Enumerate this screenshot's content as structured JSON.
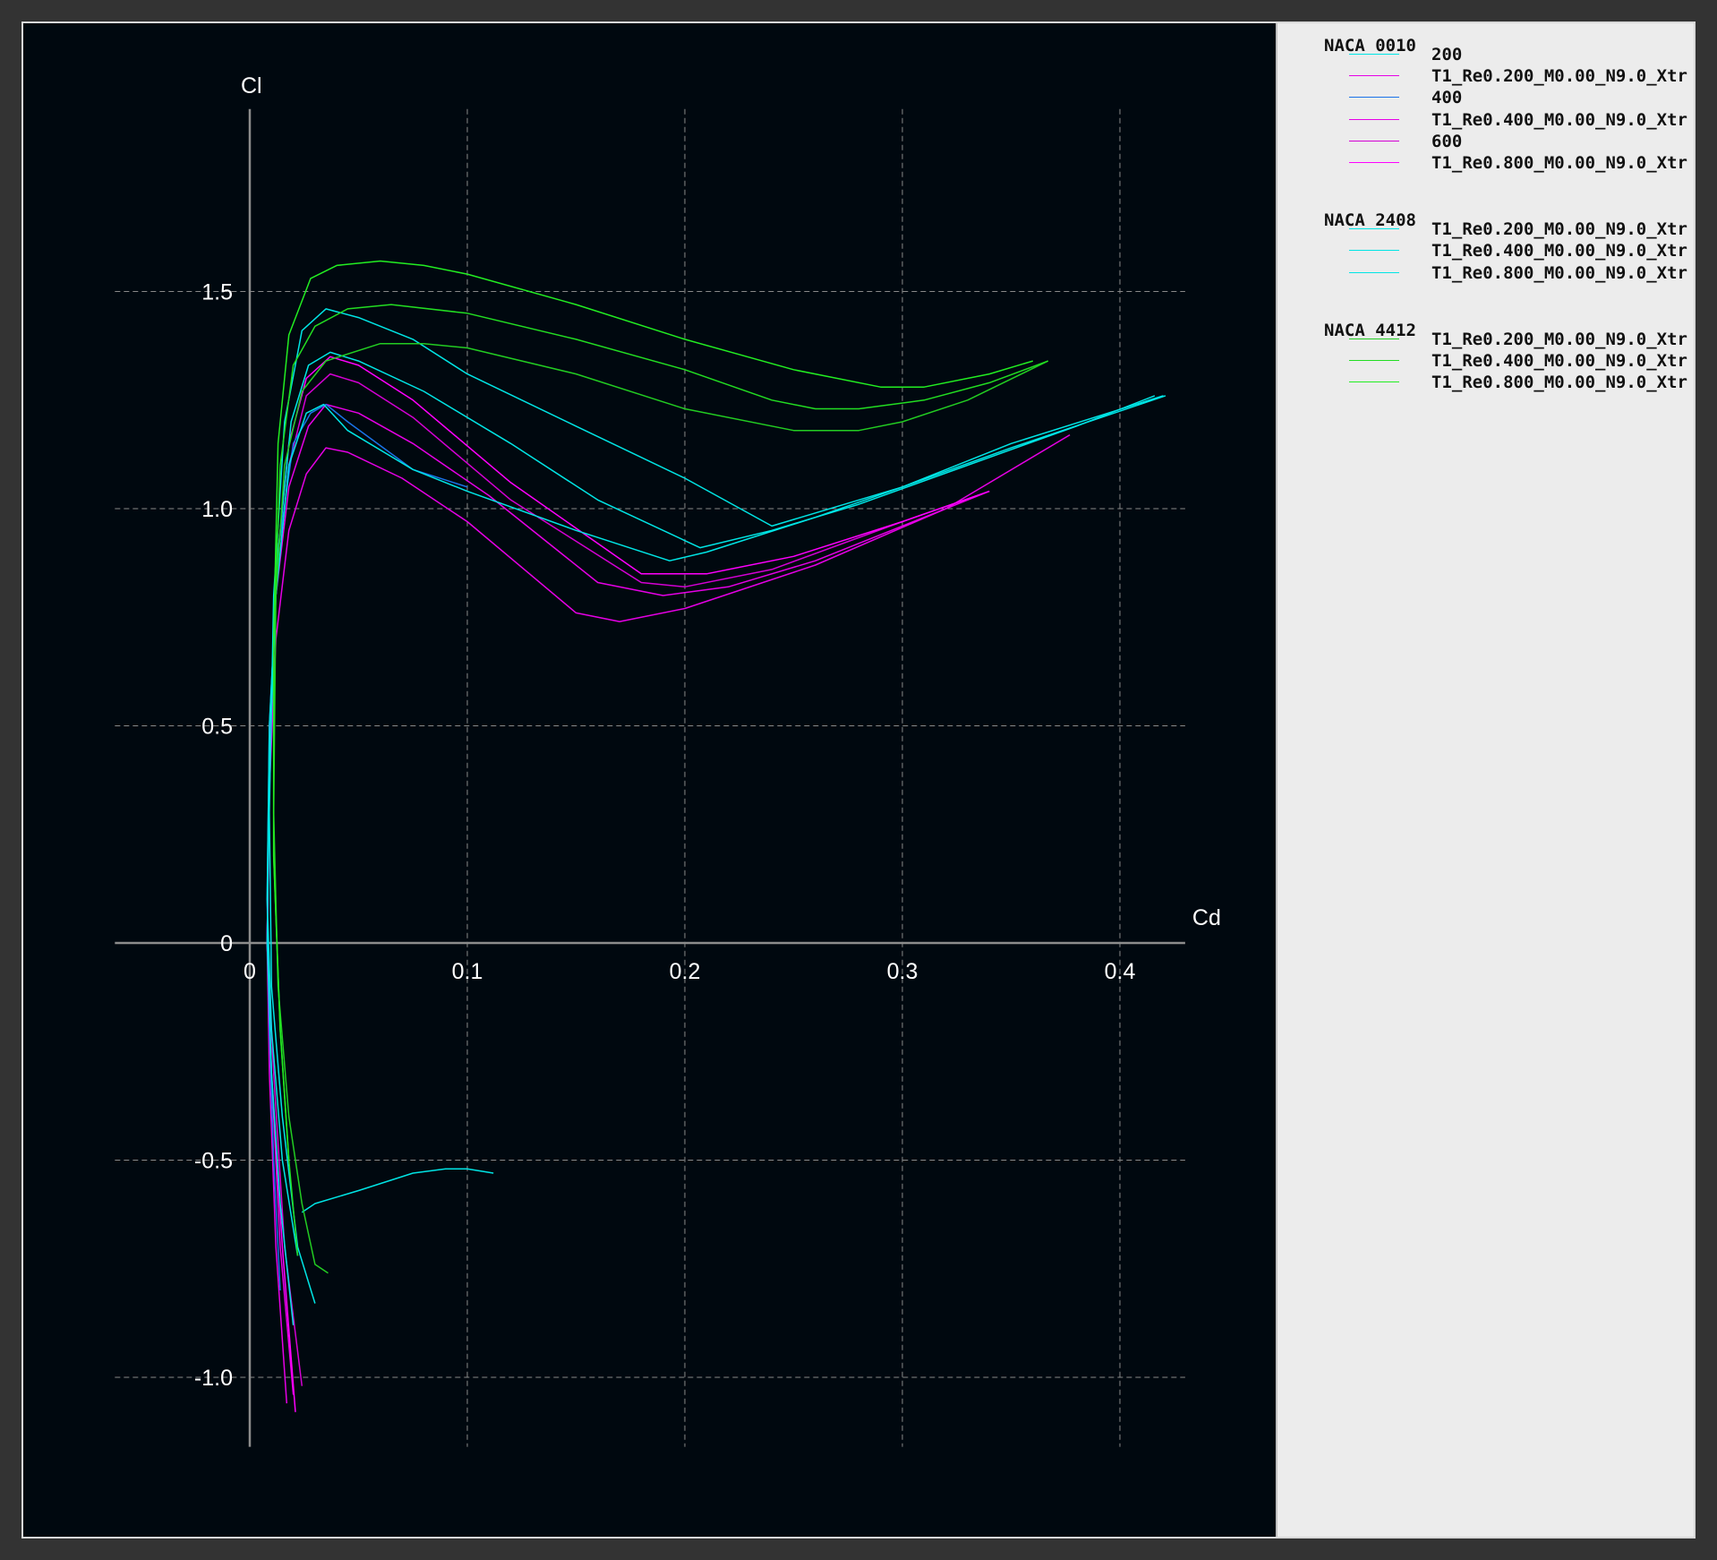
{
  "chart_data": {
    "type": "line",
    "xlabel": "Cd",
    "ylabel": "Cl",
    "xlim": [
      -0.062,
      0.43
    ],
    "ylim": [
      -1.16,
      1.92
    ],
    "grid": true,
    "legend_position": "right",
    "x_ticks": [
      {
        "value": 0,
        "label": "0"
      },
      {
        "value": 0.1,
        "label": "0.1"
      },
      {
        "value": 0.2,
        "label": "0.2"
      },
      {
        "value": 0.3,
        "label": "0.3"
      },
      {
        "value": 0.4,
        "label": "0.4"
      }
    ],
    "y_ticks": [
      {
        "value": -1.0,
        "label": "-1.0"
      },
      {
        "value": -0.5,
        "label": "-0.5"
      },
      {
        "value": 0,
        "label": "0"
      },
      {
        "value": 0.5,
        "label": "0.5"
      },
      {
        "value": 1.0,
        "label": "1.0"
      },
      {
        "value": 1.5,
        "label": "1.5"
      }
    ],
    "legend_groups": [
      {
        "title": "NACA 0010",
        "entries": [
          {
            "label": "200",
            "color": "#00e5e5"
          },
          {
            "label": "T1_Re0.200_M0.00_N9.0_Xtr",
            "color": "#e600e6"
          },
          {
            "label": "400",
            "color": "#1a73e8"
          },
          {
            "label": "T1_Re0.400_M0.00_N9.0_Xtr",
            "color": "#e600e6"
          },
          {
            "label": "600",
            "color": "#d400d4"
          },
          {
            "label": "T1_Re0.800_M0.00_N9.0_Xtr",
            "color": "#ff00ff"
          }
        ]
      },
      {
        "title": "NACA 2408",
        "entries": [
          {
            "label": "T1_Re0.200_M0.00_N9.0_Xtr",
            "color": "#00e5e5"
          },
          {
            "label": "T1_Re0.400_M0.00_N9.0_Xtr",
            "color": "#00e5e5"
          },
          {
            "label": "T1_Re0.800_M0.00_N9.0_Xtr",
            "color": "#00e5e5"
          }
        ]
      },
      {
        "title": "NACA 4412",
        "entries": [
          {
            "label": "T1_Re0.200_M0.00_N9.0_Xtr",
            "color": "#22cc22"
          },
          {
            "label": "T1_Re0.400_M0.00_N9.0_Xtr",
            "color": "#22dd22"
          },
          {
            "label": "T1_Re0.800_M0.00_N9.0_Xtr",
            "color": "#22ee22"
          }
        ]
      }
    ],
    "series": [
      {
        "color": "#e600e6",
        "points": [
          [
            0.017,
            -1.06
          ],
          [
            0.012,
            -0.7
          ],
          [
            0.009,
            -0.3
          ],
          [
            0.008,
            0
          ],
          [
            0.009,
            0.35
          ],
          [
            0.012,
            0.7
          ],
          [
            0.018,
            0.95
          ],
          [
            0.026,
            1.08
          ],
          [
            0.035,
            1.14
          ],
          [
            0.045,
            1.13
          ],
          [
            0.07,
            1.07
          ],
          [
            0.1,
            0.97
          ],
          [
            0.15,
            0.76
          ],
          [
            0.17,
            0.74
          ],
          [
            0.2,
            0.77
          ],
          [
            0.26,
            0.87
          ],
          [
            0.32,
            1.0
          ],
          [
            0.377,
            1.17
          ]
        ]
      },
      {
        "color": "#e600e6",
        "points": [
          [
            0.02,
            -1.04
          ],
          [
            0.014,
            -0.7
          ],
          [
            0.01,
            -0.3
          ],
          [
            0.008,
            0
          ],
          [
            0.009,
            0.4
          ],
          [
            0.012,
            0.8
          ],
          [
            0.018,
            1.05
          ],
          [
            0.027,
            1.19
          ],
          [
            0.035,
            1.24
          ],
          [
            0.05,
            1.22
          ],
          [
            0.075,
            1.15
          ],
          [
            0.11,
            1.03
          ],
          [
            0.16,
            0.83
          ],
          [
            0.19,
            0.8
          ],
          [
            0.22,
            0.82
          ],
          [
            0.26,
            0.88
          ],
          [
            0.32,
            1.0
          ],
          [
            0.34,
            1.04
          ]
        ]
      },
      {
        "color": "#d400d4",
        "points": [
          [
            0.024,
            -1.02
          ],
          [
            0.016,
            -0.7
          ],
          [
            0.011,
            -0.3
          ],
          [
            0.008,
            0
          ],
          [
            0.009,
            0.4
          ],
          [
            0.012,
            0.8
          ],
          [
            0.018,
            1.1
          ],
          [
            0.026,
            1.26
          ],
          [
            0.037,
            1.31
          ],
          [
            0.05,
            1.29
          ],
          [
            0.075,
            1.21
          ],
          [
            0.12,
            1.02
          ],
          [
            0.18,
            0.83
          ],
          [
            0.2,
            0.82
          ],
          [
            0.24,
            0.86
          ],
          [
            0.3,
            0.97
          ],
          [
            0.34,
            1.04
          ]
        ]
      },
      {
        "color": "#ff00ff",
        "points": [
          [
            0.021,
            -1.08
          ],
          [
            0.015,
            -0.7
          ],
          [
            0.01,
            -0.3
          ],
          [
            0.008,
            0
          ],
          [
            0.009,
            0.45
          ],
          [
            0.012,
            0.85
          ],
          [
            0.018,
            1.15
          ],
          [
            0.026,
            1.3
          ],
          [
            0.037,
            1.35
          ],
          [
            0.05,
            1.33
          ],
          [
            0.075,
            1.25
          ],
          [
            0.12,
            1.06
          ],
          [
            0.18,
            0.85
          ],
          [
            0.21,
            0.85
          ],
          [
            0.25,
            0.89
          ],
          [
            0.3,
            0.97
          ],
          [
            0.34,
            1.04
          ]
        ]
      },
      {
        "color": "#1a73e8",
        "points": [
          [
            0.014,
            -0.8
          ],
          [
            0.011,
            -0.5
          ],
          [
            0.009,
            -0.2
          ],
          [
            0.008,
            0.1
          ],
          [
            0.009,
            0.5
          ],
          [
            0.013,
            0.9
          ],
          [
            0.02,
            1.15
          ],
          [
            0.028,
            1.22
          ],
          [
            0.035,
            1.24
          ],
          [
            0.045,
            1.2
          ],
          [
            0.075,
            1.09
          ],
          [
            0.1,
            1.05
          ]
        ]
      },
      {
        "color": "#00e5e5",
        "points": [
          [
            0.02,
            -0.88
          ],
          [
            0.014,
            -0.6
          ],
          [
            0.01,
            -0.3
          ],
          [
            0.008,
            0
          ],
          [
            0.009,
            0.4
          ],
          [
            0.012,
            0.8
          ],
          [
            0.018,
            1.1
          ],
          [
            0.026,
            1.22
          ],
          [
            0.034,
            1.24
          ],
          [
            0.045,
            1.18
          ],
          [
            0.075,
            1.09
          ],
          [
            0.1,
            1.04
          ],
          [
            0.15,
            0.95
          ],
          [
            0.193,
            0.88
          ],
          [
            0.21,
            0.9
          ],
          [
            0.26,
            0.98
          ],
          [
            0.3,
            1.05
          ],
          [
            0.35,
            1.15
          ],
          [
            0.42,
            1.26
          ]
        ]
      },
      {
        "color": "#00e5e5",
        "points": [
          [
            0.022,
            -0.72
          ],
          [
            0.015,
            -0.5
          ],
          [
            0.01,
            -0.2
          ],
          [
            0.008,
            0.1
          ],
          [
            0.009,
            0.5
          ],
          [
            0.013,
            0.9
          ],
          [
            0.019,
            1.2
          ],
          [
            0.027,
            1.33
          ],
          [
            0.037,
            1.36
          ],
          [
            0.05,
            1.34
          ],
          [
            0.08,
            1.27
          ],
          [
            0.12,
            1.15
          ],
          [
            0.16,
            1.02
          ],
          [
            0.207,
            0.91
          ],
          [
            0.24,
            0.95
          ],
          [
            0.28,
            1.01
          ],
          [
            0.33,
            1.1
          ],
          [
            0.38,
            1.19
          ],
          [
            0.416,
            1.26
          ]
        ]
      },
      {
        "color": "#00e5e5",
        "points": [
          [
            0.03,
            -0.83
          ],
          [
            0.022,
            -0.7
          ],
          [
            0.015,
            -0.4
          ],
          [
            0.01,
            -0.1
          ],
          [
            0.009,
            0.3
          ],
          [
            0.011,
            0.8
          ],
          [
            0.016,
            1.2
          ],
          [
            0.024,
            1.41
          ],
          [
            0.035,
            1.46
          ],
          [
            0.05,
            1.44
          ],
          [
            0.075,
            1.39
          ],
          [
            0.1,
            1.31
          ],
          [
            0.15,
            1.19
          ],
          [
            0.2,
            1.07
          ],
          [
            0.24,
            0.96
          ],
          [
            0.3,
            1.05
          ],
          [
            0.35,
            1.14
          ],
          [
            0.421,
            1.26
          ]
        ]
      },
      {
        "color": "#00e5e5",
        "points": [
          [
            0.024,
            -0.62
          ],
          [
            0.03,
            -0.6
          ],
          [
            0.05,
            -0.57
          ],
          [
            0.075,
            -0.53
          ],
          [
            0.09,
            -0.52
          ],
          [
            0.1,
            -0.52
          ],
          [
            0.112,
            -0.53
          ]
        ]
      },
      {
        "color": "#22cc22",
        "points": [
          [
            0.036,
            -0.76
          ],
          [
            0.03,
            -0.74
          ],
          [
            0.024,
            -0.6
          ],
          [
            0.018,
            -0.4
          ],
          [
            0.013,
            -0.1
          ],
          [
            0.011,
            0.3
          ],
          [
            0.012,
            0.8
          ],
          [
            0.016,
            1.1
          ],
          [
            0.024,
            1.27
          ],
          [
            0.035,
            1.34
          ],
          [
            0.06,
            1.38
          ],
          [
            0.08,
            1.38
          ],
          [
            0.1,
            1.37
          ],
          [
            0.15,
            1.31
          ],
          [
            0.2,
            1.23
          ],
          [
            0.25,
            1.18
          ],
          [
            0.28,
            1.18
          ],
          [
            0.3,
            1.2
          ],
          [
            0.33,
            1.25
          ],
          [
            0.367,
            1.34
          ]
        ]
      },
      {
        "color": "#22dd22",
        "points": [
          [
            0.022,
            -0.72
          ],
          [
            0.018,
            -0.5
          ],
          [
            0.014,
            -0.2
          ],
          [
            0.011,
            0.2
          ],
          [
            0.011,
            0.7
          ],
          [
            0.014,
            1.1
          ],
          [
            0.02,
            1.33
          ],
          [
            0.03,
            1.42
          ],
          [
            0.045,
            1.46
          ],
          [
            0.065,
            1.47
          ],
          [
            0.1,
            1.45
          ],
          [
            0.15,
            1.39
          ],
          [
            0.2,
            1.32
          ],
          [
            0.24,
            1.25
          ],
          [
            0.26,
            1.23
          ],
          [
            0.28,
            1.23
          ],
          [
            0.31,
            1.25
          ],
          [
            0.34,
            1.29
          ],
          [
            0.367,
            1.34
          ]
        ]
      },
      {
        "color": "#22ee22",
        "points": [
          [
            0.018,
            -0.5
          ],
          [
            0.014,
            -0.2
          ],
          [
            0.011,
            0.2
          ],
          [
            0.011,
            0.7
          ],
          [
            0.013,
            1.15
          ],
          [
            0.018,
            1.4
          ],
          [
            0.028,
            1.53
          ],
          [
            0.04,
            1.56
          ],
          [
            0.06,
            1.57
          ],
          [
            0.08,
            1.56
          ],
          [
            0.1,
            1.54
          ],
          [
            0.15,
            1.47
          ],
          [
            0.2,
            1.39
          ],
          [
            0.25,
            1.32
          ],
          [
            0.29,
            1.28
          ],
          [
            0.31,
            1.28
          ],
          [
            0.34,
            1.31
          ],
          [
            0.36,
            1.34
          ]
        ]
      }
    ]
  }
}
